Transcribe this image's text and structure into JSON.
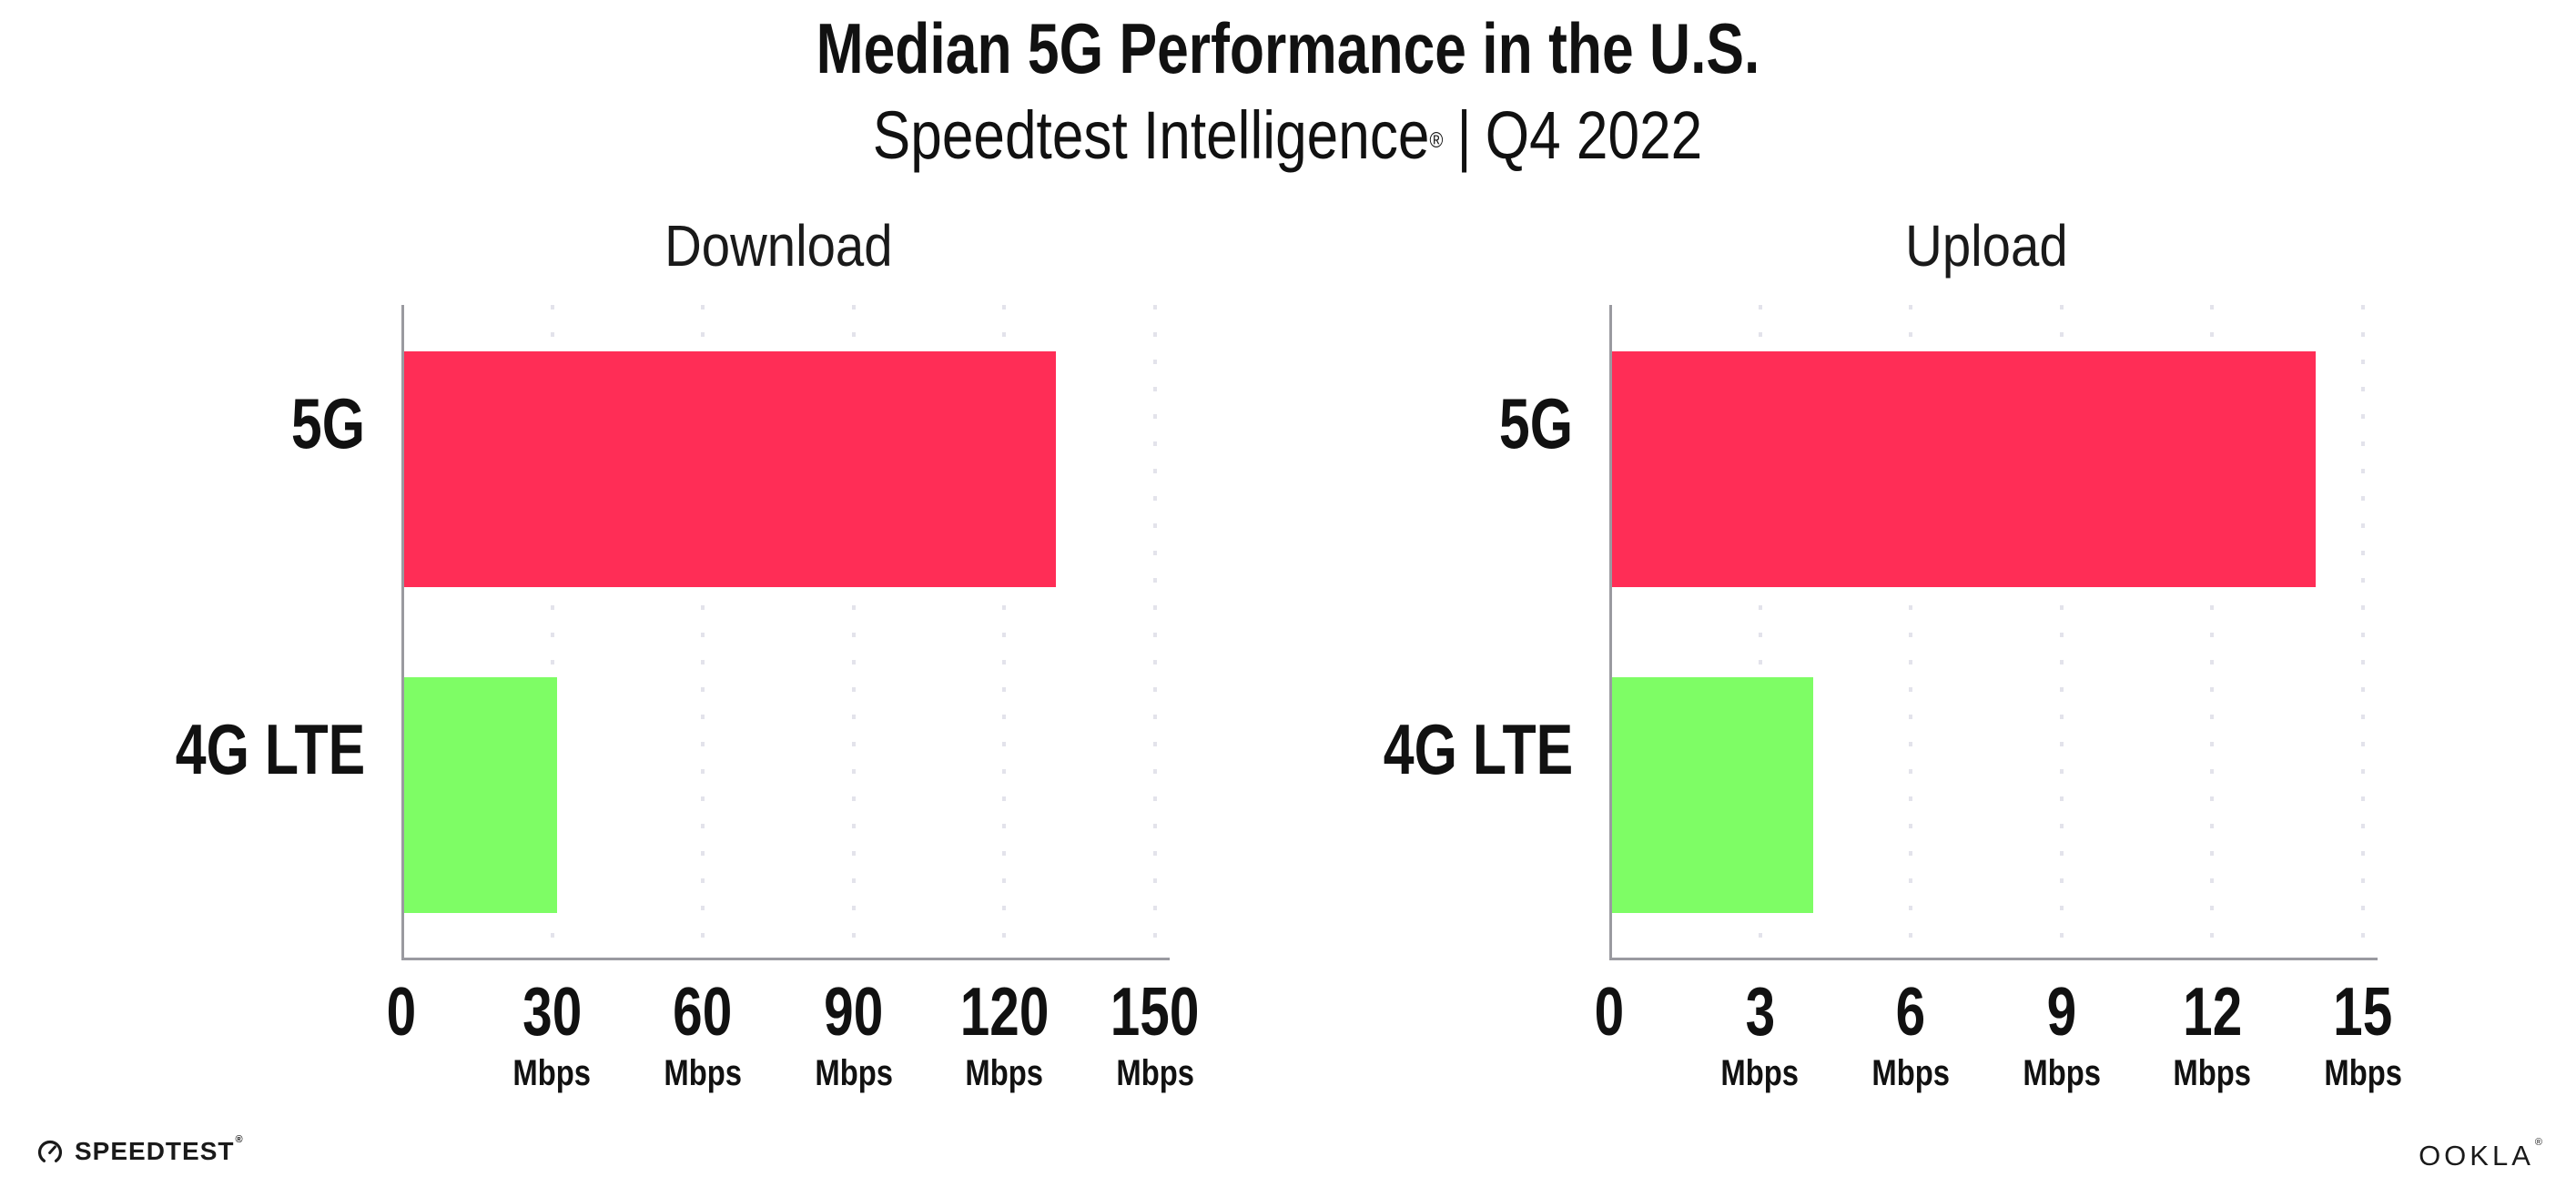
{
  "page": {
    "background": "#FFFFFF"
  },
  "title": "Median 5G Performance in the U.S.",
  "subtitle": {
    "product": "Speedtest Intelligence",
    "registered_mark": "®",
    "separator": "|",
    "period": "Q4 2022"
  },
  "colors": {
    "bar_5g": "#FF2D56",
    "bar_4g_lte": "#7EFD65",
    "axis": "#9A9AA0",
    "gridline": "#E3E3EB",
    "text": "#111111"
  },
  "chart_data": [
    {
      "type": "bar",
      "orientation": "horizontal",
      "title": "Download",
      "categories": [
        "5G",
        "4G LTE"
      ],
      "values": [
        129.8,
        30.4
      ],
      "unit": "Mbps",
      "xlim": [
        0,
        150
      ],
      "ticks": [
        {
          "label": "0"
        },
        {
          "label": "30",
          "unit": "Mbps"
        },
        {
          "label": "60",
          "unit": "Mbps"
        },
        {
          "label": "90",
          "unit": "Mbps"
        },
        {
          "label": "120",
          "unit": "Mbps"
        },
        {
          "label": "150",
          "unit": "Mbps"
        }
      ],
      "bar_colors": [
        "#FF2D56",
        "#7EFD65"
      ],
      "grid": "vertical-dotted",
      "legend": "none"
    },
    {
      "type": "bar",
      "orientation": "horizontal",
      "title": "Upload",
      "categories": [
        "5G",
        "4G LTE"
      ],
      "values": [
        14,
        4
      ],
      "unit": "Mbps",
      "xlim": [
        0,
        15
      ],
      "ticks": [
        {
          "label": "0"
        },
        {
          "label": "3",
          "unit": "Mbps"
        },
        {
          "label": "6",
          "unit": "Mbps"
        },
        {
          "label": "9",
          "unit": "Mbps"
        },
        {
          "label": "12",
          "unit": "Mbps"
        },
        {
          "label": "15",
          "unit": "Mbps"
        }
      ],
      "bar_colors": [
        "#FF2D56",
        "#7EFD65"
      ],
      "grid": "vertical-dotted",
      "legend": "none"
    }
  ],
  "footer": {
    "speedtest": {
      "icon": "speedtest-gauge-icon",
      "wordmark": "SPEEDTEST",
      "registered_mark": "®"
    },
    "ookla": {
      "wordmark": "OOKLA",
      "registered_mark": "®"
    }
  }
}
